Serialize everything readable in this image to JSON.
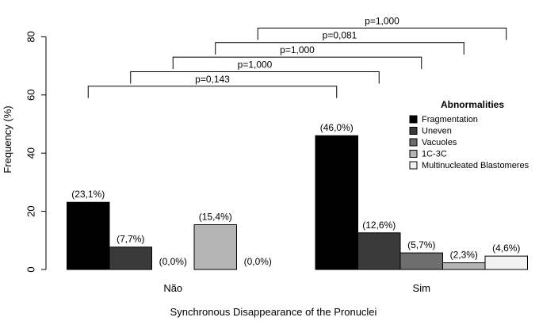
{
  "chart_data": {
    "type": "bar",
    "xlabel": "Synchronous Disappearance of the Pronuclei",
    "ylabel": "Frequency (%)",
    "ylim": [
      0,
      80
    ],
    "yticks": [
      0,
      20,
      40,
      60,
      80
    ],
    "categories": [
      "Não",
      "Sim"
    ],
    "series": [
      {
        "name": "Fragmentation",
        "color": "#000000",
        "values": [
          23.1,
          46.0
        ],
        "labels": [
          "(23,1%)",
          "(46,0%)"
        ]
      },
      {
        "name": "Uneven",
        "color": "#3a3a3a",
        "values": [
          7.7,
          12.6
        ],
        "labels": [
          "(7,7%)",
          "(12,6%)"
        ]
      },
      {
        "name": "Vacuoles",
        "color": "#6e6e6e",
        "values": [
          0.0,
          5.7
        ],
        "labels": [
          "(0,0%)",
          "(5,7%)"
        ]
      },
      {
        "name": "1C-3C",
        "color": "#b4b4b4",
        "values": [
          15.4,
          2.3
        ],
        "labels": [
          "(15,4%)",
          "(2,3%)"
        ]
      },
      {
        "name": "Multinucleated Blastomeres",
        "color": "#f2f2f2",
        "values": [
          0.0,
          4.6
        ],
        "labels": [
          "(0,0%)",
          "(4,6%)"
        ]
      }
    ],
    "legend": {
      "title": "Abnormalities",
      "placement": "right"
    },
    "comparisons": [
      {
        "label": "p=0,143",
        "series_index": 0,
        "level": 63
      },
      {
        "label": "p=1,000",
        "series_index": 1,
        "level": 68
      },
      {
        "label": "p=1,000",
        "series_index": 2,
        "level": 73
      },
      {
        "label": "p=0,081",
        "series_index": 3,
        "level": 78
      },
      {
        "label": "p=1,000",
        "series_index": 4,
        "level": 83
      }
    ]
  }
}
